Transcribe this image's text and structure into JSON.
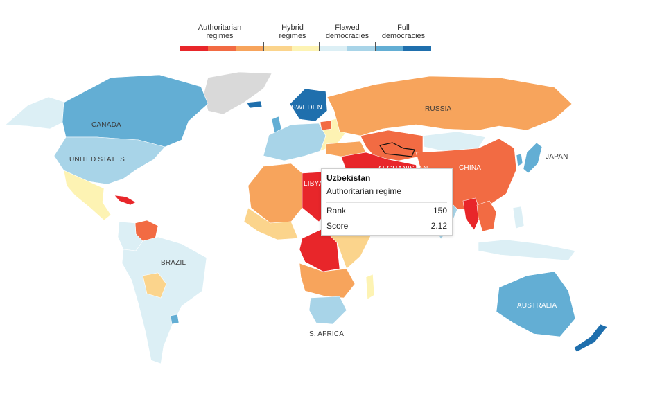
{
  "legend": {
    "categories": [
      {
        "label_line1": "Authoritarian",
        "label_line2": "regimes"
      },
      {
        "label_line1": "Hybrid",
        "label_line2": "regimes"
      },
      {
        "label_line1": "Flawed",
        "label_line2": "democracies"
      },
      {
        "label_line1": "Full",
        "label_line2": "democracies"
      }
    ],
    "swatches": [
      "#e8262a",
      "#f26b43",
      "#f7a45c",
      "#fbd48c",
      "#fdf3b3",
      "#dceff5",
      "#a8d4e8",
      "#63aed4",
      "#1f6fad"
    ]
  },
  "map": {
    "labels": {
      "canada": "CANADA",
      "united_states": "UNITED STATES",
      "brazil": "BRAZIL",
      "russia": "RUSSIA",
      "china": "CHINA",
      "japan": "JAPAN",
      "australia": "AUSTRALIA",
      "libya": "LIBYA",
      "afghanistan": "AFGHANISTAN",
      "s_africa": "S. AFRICA",
      "sweden": "SWEDEN"
    },
    "colors": {
      "full": "#1f6fad",
      "full_light": "#63aed4",
      "flawed": "#a8d4e8",
      "flawed_light": "#dceff5",
      "hybrid": "#fdf3b3",
      "hybrid_dark": "#fbd48c",
      "auth_light": "#f7a45c",
      "auth_mid": "#f26b43",
      "auth_dark": "#e8262a",
      "no_data": "#d9d9d9"
    }
  },
  "tooltip": {
    "country": "Uzbekistan",
    "regime": "Authoritarian regime",
    "rank_label": "Rank",
    "rank_value": "150",
    "score_label": "Score",
    "score_value": "2.12"
  }
}
